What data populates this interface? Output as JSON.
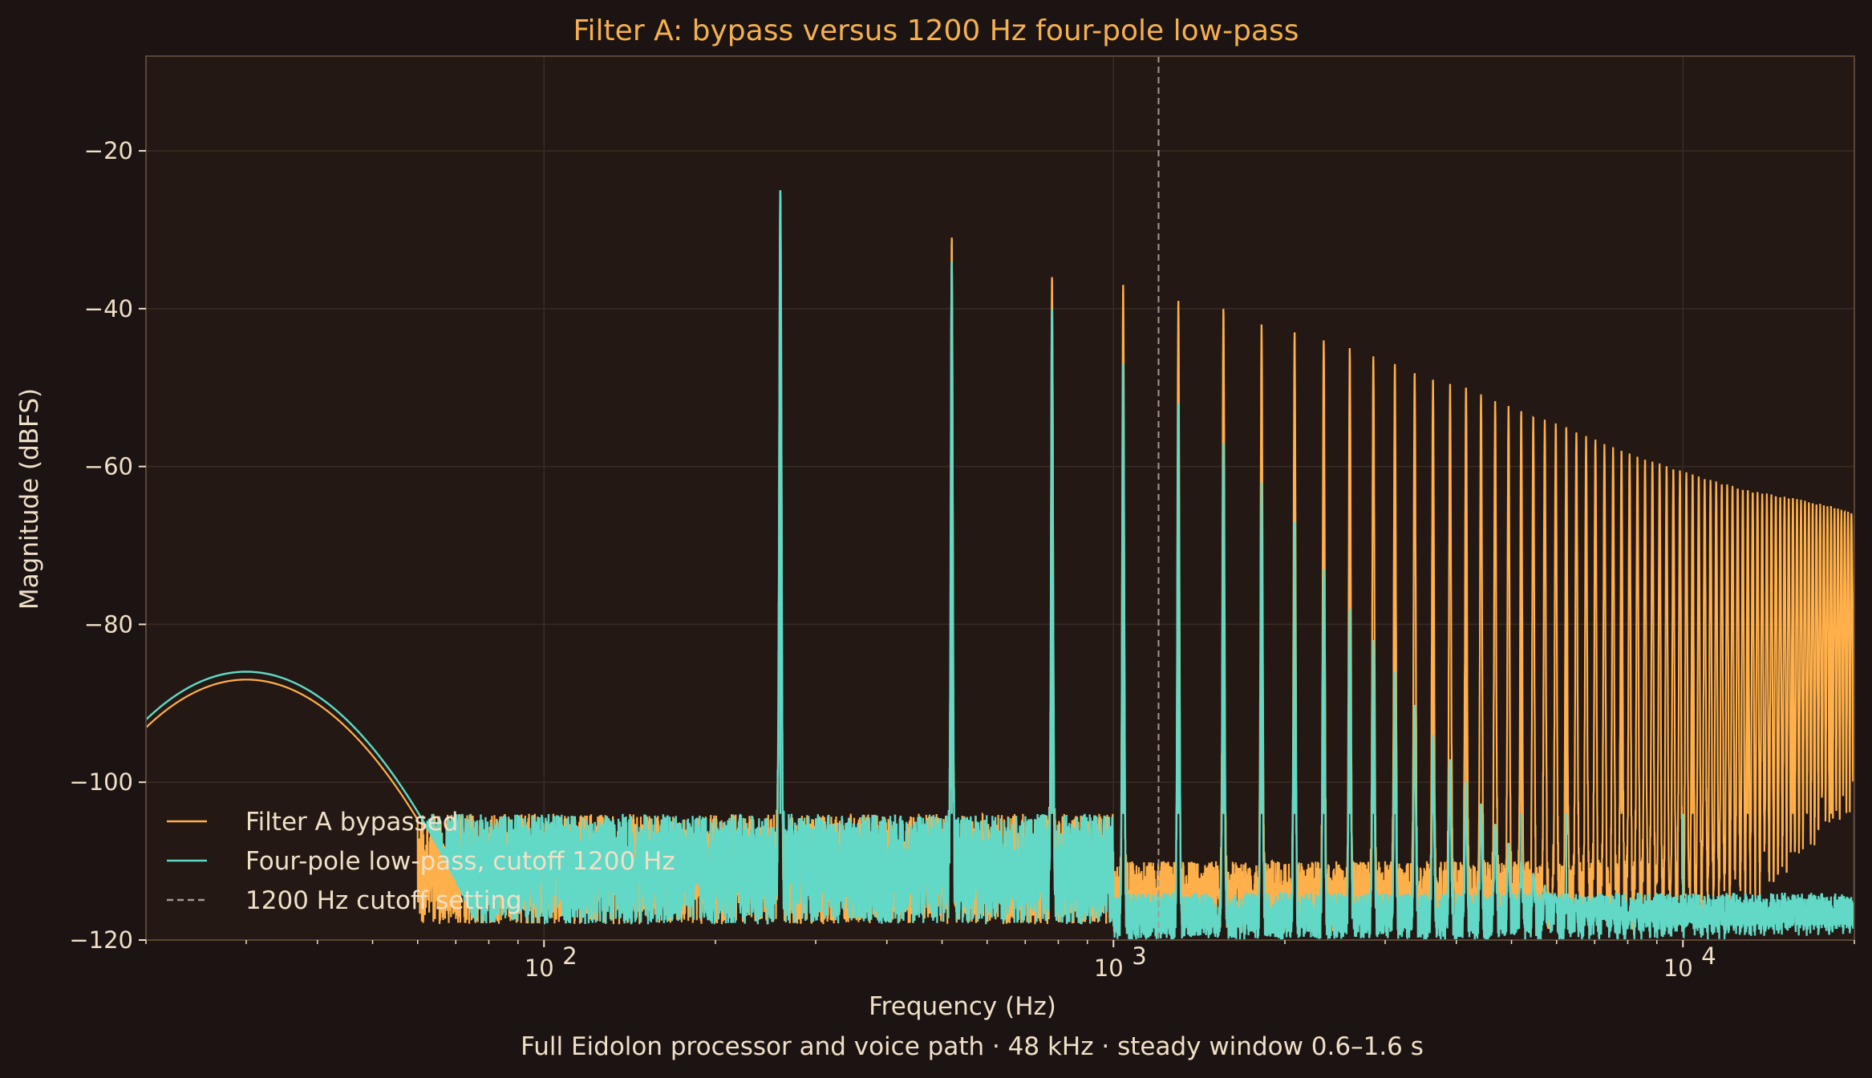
{
  "colors": {
    "background": "#1c1412",
    "plot_background": "#231814",
    "frame": "#5a4536",
    "grid": "#3a2c25",
    "text": "#efe0c8",
    "title": "#f5b04e",
    "bypass": "#ffb04a",
    "lowpass": "#62d8c6",
    "cutoff_line": "#a8998c"
  },
  "chart_data": {
    "type": "line",
    "title": "Filter A: bypass versus 1200 Hz four-pole low-pass",
    "subtitle": "Full Eidolon processor and voice path · 48 kHz · steady window 0.6–1.6 s",
    "xlabel": "Frequency (Hz)",
    "ylabel": "Magnitude (dBFS)",
    "x_scale": "log",
    "xlim": [
      20,
      20000
    ],
    "ylim": [
      -120,
      -8
    ],
    "y_ticks": [
      -20,
      -40,
      -60,
      -80,
      -100,
      -120
    ],
    "y_tick_labels": [
      "−20",
      "−40",
      "−60",
      "−80",
      "−100",
      "−120"
    ],
    "x_ticks": [
      100,
      1000,
      10000
    ],
    "x_tick_labels": [
      {
        "base": "10",
        "exp": "2"
      },
      {
        "base": "10",
        "exp": "3"
      },
      {
        "base": "10",
        "exp": "4"
      }
    ],
    "grid": true,
    "legend_placement": "lower-left",
    "fundamental_hz": 260,
    "series": [
      {
        "name": "Filter A bypassed",
        "color_key": "bypass",
        "harmonic_peaks": [
          {
            "f": 260,
            "db": -25
          },
          {
            "f": 520,
            "db": -31
          },
          {
            "f": 780,
            "db": -36
          },
          {
            "f": 1040,
            "db": -37
          },
          {
            "f": 1300,
            "db": -39
          },
          {
            "f": 1560,
            "db": -40
          },
          {
            "f": 1820,
            "db": -42
          },
          {
            "f": 2080,
            "db": -43
          },
          {
            "f": 2340,
            "db": -44
          },
          {
            "f": 2600,
            "db": -45
          },
          {
            "f": 3120,
            "db": -47
          },
          {
            "f": 3640,
            "db": -49
          },
          {
            "f": 4160,
            "db": -50
          },
          {
            "f": 5200,
            "db": -53
          },
          {
            "f": 6240,
            "db": -55
          },
          {
            "f": 7800,
            "db": -58
          },
          {
            "f": 10400,
            "db": -61
          },
          {
            "f": 13000,
            "db": -63
          },
          {
            "f": 15600,
            "db": -64
          },
          {
            "f": 18200,
            "db": -65
          },
          {
            "f": 20000,
            "db": -66
          }
        ],
        "floor_db": {
          "below_1000": -112,
          "above_2000": -116
        }
      },
      {
        "name": "Four-pole low-pass, cutoff 1200 Hz",
        "color_key": "lowpass",
        "harmonic_peaks": [
          {
            "f": 30,
            "db": -86
          },
          {
            "f": 260,
            "db": -25
          },
          {
            "f": 520,
            "db": -34
          },
          {
            "f": 780,
            "db": -40
          },
          {
            "f": 1040,
            "db": -47
          },
          {
            "f": 1300,
            "db": -52
          },
          {
            "f": 1560,
            "db": -57
          },
          {
            "f": 1820,
            "db": -62
          },
          {
            "f": 2080,
            "db": -67
          },
          {
            "f": 2340,
            "db": -73
          },
          {
            "f": 2600,
            "db": -78
          },
          {
            "f": 2860,
            "db": -82
          },
          {
            "f": 3120,
            "db": -86
          },
          {
            "f": 3640,
            "db": -94
          },
          {
            "f": 4160,
            "db": -100
          },
          {
            "f": 5200,
            "db": -110
          },
          {
            "f": 6240,
            "db": -116
          },
          {
            "f": 10000,
            "db": -118
          },
          {
            "f": 20000,
            "db": -118
          }
        ]
      },
      {
        "name": "1200 Hz cutoff setting",
        "color_key": "cutoff_line",
        "x": 1200,
        "style": "dashed"
      }
    ]
  }
}
